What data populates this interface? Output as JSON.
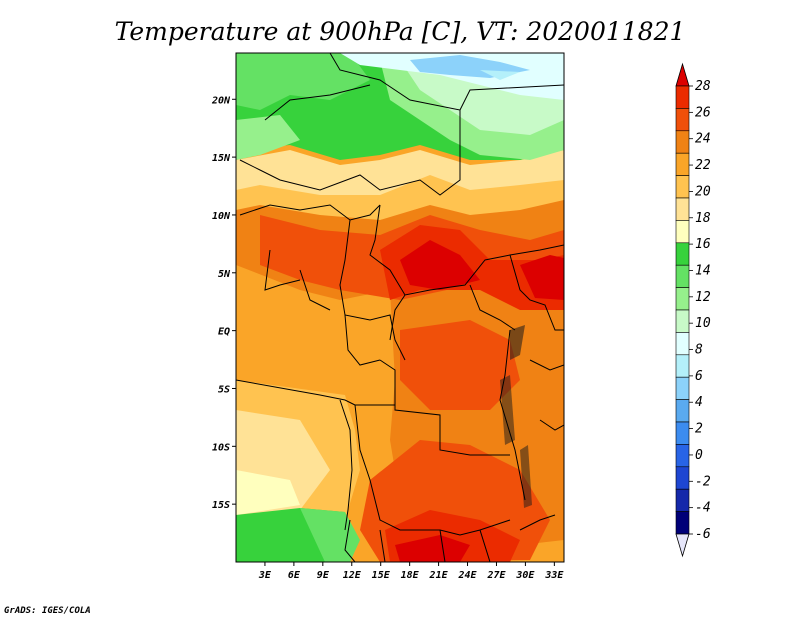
{
  "title": "Temperature at 900hPa [C], VT: 2020011821",
  "credit": "GrADS: IGES/COLA",
  "map": {
    "lon_range": [
      0,
      34
    ],
    "lat_range": [
      -20,
      24
    ],
    "x_tick_labels": [
      "3E",
      "6E",
      "9E",
      "12E",
      "15E",
      "18E",
      "21E",
      "24E",
      "27E",
      "30E",
      "33E"
    ],
    "y_tick_labels": [
      "20N",
      "15N",
      "10N",
      "5N",
      "EQ",
      "5S",
      "10S",
      "15S"
    ]
  },
  "colorbar": {
    "labels": [
      "28",
      "26",
      "24",
      "22",
      "20",
      "18",
      "16",
      "14",
      "12",
      "10",
      "8",
      "6",
      "4",
      "2",
      "0",
      "-2",
      "-4",
      "-6"
    ],
    "colors": [
      "#dc0000",
      "#eb2b00",
      "#f0500a",
      "#f08214",
      "#faa528",
      "#ffc350",
      "#ffe296",
      "#ffffbe",
      "#37d23c",
      "#64e164",
      "#96f08c",
      "#c8fac8",
      "#e1ffff",
      "#b4f0fa",
      "#8cd2fa",
      "#5aaaf0",
      "#3c8cf0",
      "#2864e6",
      "#1e46d2",
      "#1428aa",
      "#000078",
      "#e6e6fa"
    ]
  },
  "colors": {
    "hot": "#dc0000",
    "warm_orange": "#f08214",
    "light_orange": "#faa528",
    "pale_yellow": "#ffe296",
    "green": "#37d23c",
    "light_blue": "#c8fac8"
  }
}
